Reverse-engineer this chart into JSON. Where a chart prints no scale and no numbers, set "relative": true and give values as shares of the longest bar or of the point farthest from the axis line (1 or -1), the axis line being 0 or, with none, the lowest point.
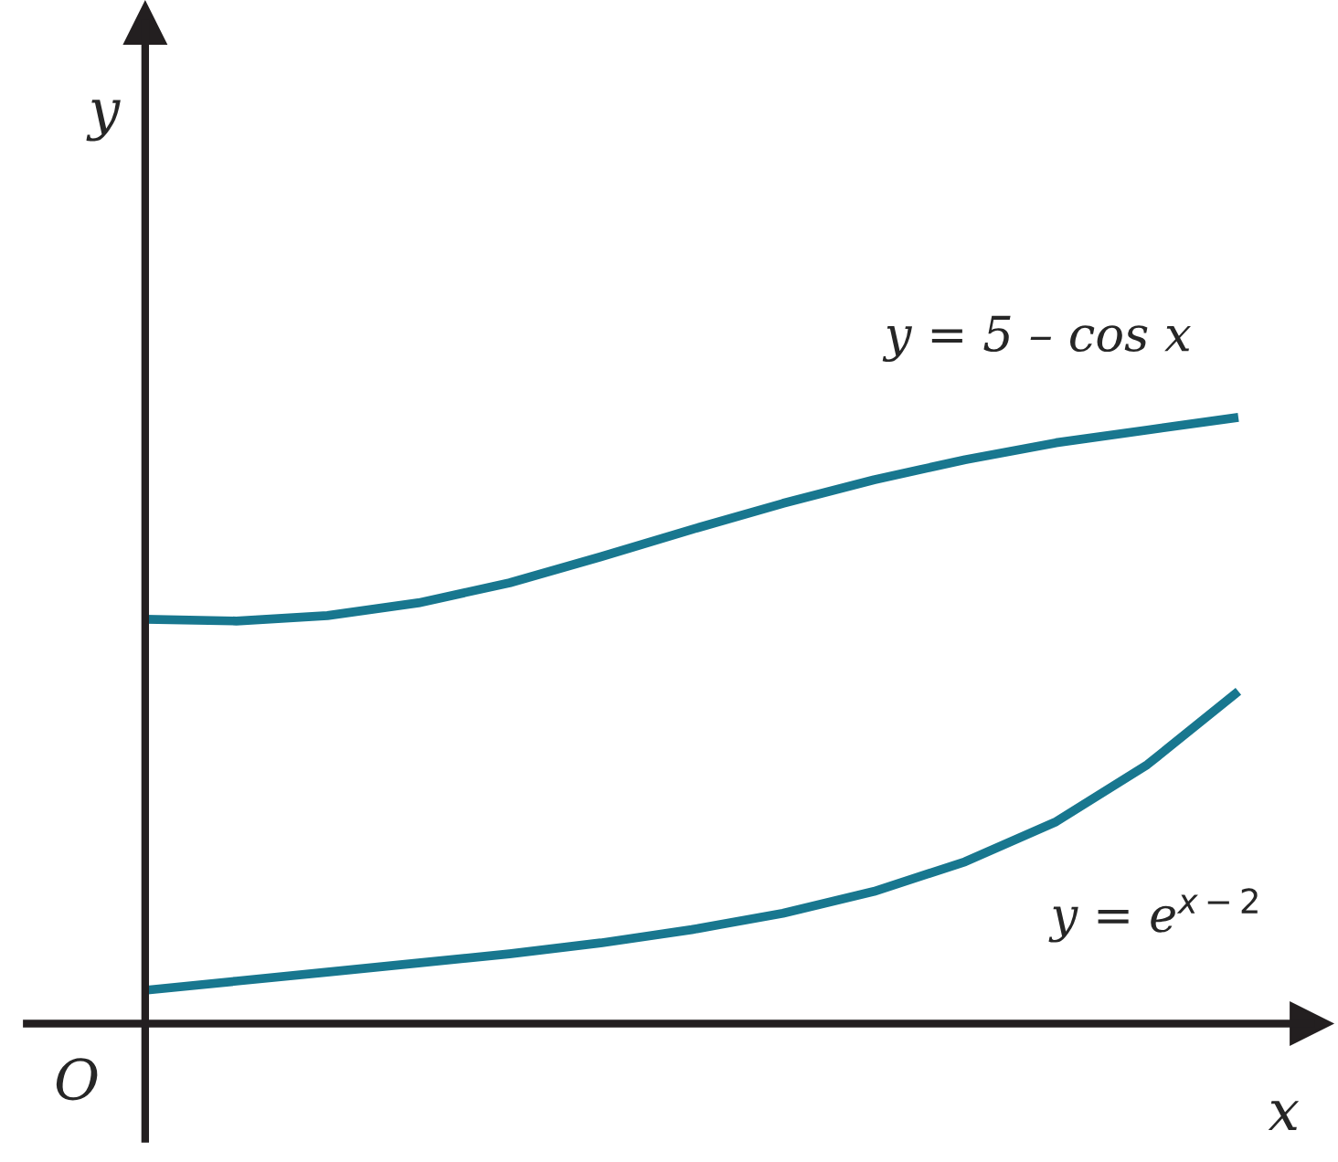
{
  "chart_data": {
    "type": "line",
    "relative": true,
    "legend": false,
    "marker": "none",
    "line_style": "solid",
    "categories": [
      null,
      null,
      null,
      null,
      null,
      null,
      null,
      null,
      null,
      null,
      null,
      null,
      null
    ],
    "series": [
      {
        "name": "y = 5 – cos x",
        "color": "#18778f",
        "values": [
          0.667,
          0.664,
          0.673,
          0.694,
          0.727,
          0.77,
          0.815,
          0.858,
          0.897,
          0.93,
          0.958,
          0.979,
          1.0
        ]
      },
      {
        "name": "y = e$^{x−2}$",
        "color": "#18778f",
        "values": [
          0.055,
          0.07,
          0.085,
          0.1,
          0.115,
          0.133,
          0.155,
          0.182,
          0.218,
          0.267,
          0.333,
          0.427,
          0.548
        ]
      }
    ],
    "annotations": [
      "O",
      "x",
      "y"
    ]
  }
}
